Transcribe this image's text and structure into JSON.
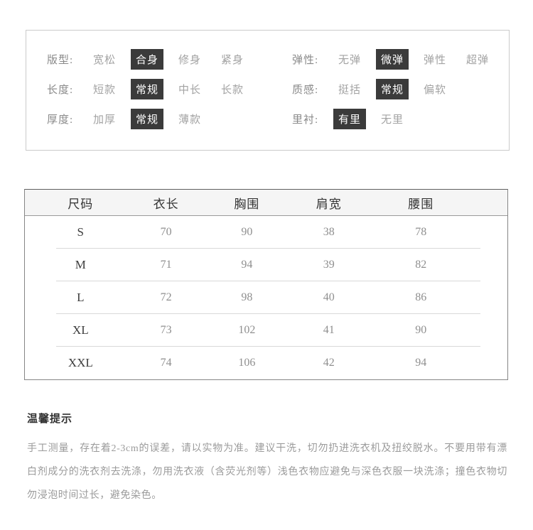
{
  "colors": {
    "selected_chip_bg": "#3b3b3b",
    "selected_chip_text": "#ffffff",
    "panel_border": "#cacaca",
    "table_border": "#858585",
    "table_header_bg": "#f5f5f5",
    "muted_text": "#a3a3a3",
    "dark_text": "#333333"
  },
  "attributes": {
    "left": [
      {
        "label": "版型:",
        "options": [
          {
            "text": "宽松",
            "selected": false
          },
          {
            "text": "合身",
            "selected": true
          },
          {
            "text": "修身",
            "selected": false
          },
          {
            "text": "紧身",
            "selected": false
          }
        ]
      },
      {
        "label": "长度:",
        "options": [
          {
            "text": "短款",
            "selected": false
          },
          {
            "text": "常规",
            "selected": true
          },
          {
            "text": "中长",
            "selected": false
          },
          {
            "text": "长款",
            "selected": false
          }
        ]
      },
      {
        "label": "厚度:",
        "options": [
          {
            "text": "加厚",
            "selected": false
          },
          {
            "text": "常规",
            "selected": true
          },
          {
            "text": "薄款",
            "selected": false
          }
        ]
      }
    ],
    "right": [
      {
        "label": "弹性:",
        "options": [
          {
            "text": "无弹",
            "selected": false
          },
          {
            "text": "微弹",
            "selected": true
          },
          {
            "text": "弹性",
            "selected": false
          },
          {
            "text": "超弹",
            "selected": false
          }
        ]
      },
      {
        "label": "质感:",
        "options": [
          {
            "text": "挺括",
            "selected": false
          },
          {
            "text": "常规",
            "selected": true
          },
          {
            "text": "偏软",
            "selected": false
          }
        ]
      },
      {
        "label": "里衬:",
        "options": [
          {
            "text": "有里",
            "selected": true
          },
          {
            "text": "无里",
            "selected": false
          }
        ]
      }
    ]
  },
  "size_table": {
    "headers": [
      "尺码",
      "衣长",
      "胸围",
      "肩宽",
      "腰围"
    ],
    "rows": [
      [
        "S",
        "70",
        "90",
        "38",
        "78"
      ],
      [
        "M",
        "71",
        "94",
        "39",
        "82"
      ],
      [
        "L",
        "72",
        "98",
        "40",
        "86"
      ],
      [
        "XL",
        "73",
        "102",
        "41",
        "90"
      ],
      [
        "XXL",
        "74",
        "106",
        "42",
        "94"
      ]
    ]
  },
  "tips": {
    "title": "温馨提示",
    "body": "手工测量，存在着2-3cm的误差，请以实物为准。建议干洗，切勿扔进洗衣机及扭绞脱水。不要用带有漂白剂成分的洗衣剂去洗涤，勿用洗衣液（含荧光剂等）浅色衣物应避免与深色衣服一块洗涤；撞色衣物切勿浸泡时间过长，避免染色。"
  }
}
